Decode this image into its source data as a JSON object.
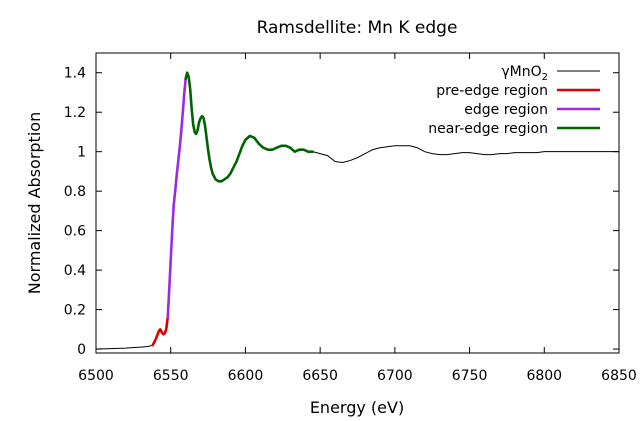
{
  "chart_data": {
    "type": "line",
    "title": "Ramsdellite: Mn K edge",
    "xlabel": "Energy (eV)",
    "ylabel": "Normalized Absorption",
    "xlim": [
      6500,
      6850
    ],
    "ylim": [
      -0.02,
      1.5
    ],
    "xticks": [
      6500,
      6550,
      6600,
      6650,
      6700,
      6750,
      6800,
      6850
    ],
    "xtick_labels": [
      "6500",
      "6550",
      "6600",
      "6650",
      "6700",
      "6750",
      "6800",
      "6850"
    ],
    "yticks": [
      0,
      0.2,
      0.4,
      0.6,
      0.8,
      1,
      1.2,
      1.4
    ],
    "ytick_labels": [
      "0",
      "0.2",
      "0.4",
      "0.6",
      "0.8",
      "1",
      "1.2",
      "1.4"
    ],
    "grid": false,
    "legend_position": "top-right",
    "series": [
      {
        "name": "γMnO2",
        "label_main": "γMnO",
        "label_sub": "2",
        "color": "#000000",
        "x": [
          6500,
          6510,
          6520,
          6530,
          6535,
          6538,
          6540,
          6542,
          6543,
          6544,
          6545,
          6546,
          6547,
          6548,
          6549,
          6550,
          6551,
          6552,
          6553,
          6554,
          6555,
          6556,
          6557,
          6558,
          6559,
          6560,
          6561,
          6562,
          6563,
          6564,
          6565,
          6566,
          6567,
          6568,
          6569,
          6570,
          6571,
          6572,
          6573,
          6574,
          6575,
          6576,
          6577,
          6578,
          6580,
          6582,
          6584,
          6586,
          6588,
          6590,
          6592,
          6594,
          6596,
          6598,
          6600,
          6603,
          6606,
          6609,
          6612,
          6615,
          6618,
          6621,
          6624,
          6627,
          6630,
          6633,
          6636,
          6639,
          6642,
          6645,
          6650,
          6655,
          6660,
          6665,
          6670,
          6675,
          6680,
          6685,
          6690,
          6695,
          6700,
          6705,
          6710,
          6715,
          6720,
          6725,
          6730,
          6735,
          6740,
          6745,
          6750,
          6755,
          6760,
          6765,
          6770,
          6775,
          6780,
          6785,
          6790,
          6795,
          6800,
          6805,
          6810,
          6815,
          6820,
          6825,
          6830,
          6835,
          6840,
          6845,
          6850
        ],
        "y": [
          0.0,
          0.002,
          0.005,
          0.01,
          0.013,
          0.02,
          0.05,
          0.09,
          0.1,
          0.085,
          0.075,
          0.08,
          0.1,
          0.16,
          0.3,
          0.45,
          0.6,
          0.73,
          0.8,
          0.88,
          0.95,
          1.02,
          1.1,
          1.19,
          1.29,
          1.37,
          1.4,
          1.38,
          1.32,
          1.22,
          1.14,
          1.1,
          1.09,
          1.11,
          1.15,
          1.17,
          1.18,
          1.17,
          1.13,
          1.07,
          1.01,
          0.96,
          0.92,
          0.89,
          0.86,
          0.85,
          0.85,
          0.86,
          0.87,
          0.89,
          0.92,
          0.95,
          0.99,
          1.03,
          1.06,
          1.08,
          1.07,
          1.04,
          1.02,
          1.01,
          1.01,
          1.02,
          1.03,
          1.03,
          1.02,
          1.0,
          1.01,
          1.01,
          1.0,
          1.0,
          0.99,
          0.98,
          0.95,
          0.945,
          0.955,
          0.97,
          0.99,
          1.01,
          1.02,
          1.025,
          1.03,
          1.03,
          1.03,
          1.02,
          1.0,
          0.99,
          0.985,
          0.985,
          0.99,
          0.995,
          0.995,
          0.99,
          0.985,
          0.985,
          0.99,
          0.99,
          0.995,
          0.995,
          0.995,
          0.995,
          1.0,
          1.0,
          1.0,
          1.0,
          1.0,
          1.0,
          1.0,
          1.0,
          1.0,
          1.0,
          1.0
        ]
      },
      {
        "name": "pre-edge region",
        "label_main": "pre-edge region",
        "label_sub": "",
        "color": "#e00000",
        "x_range": [
          6538,
          6548
        ]
      },
      {
        "name": "edge region",
        "label_main": "edge region",
        "label_sub": "",
        "color": "#9a2be2",
        "x_range": [
          6548,
          6560
        ]
      },
      {
        "name": "near-edge region",
        "label_main": "near-edge region",
        "label_sub": "",
        "color": "#006400",
        "x_range": [
          6560,
          6645
        ]
      }
    ]
  }
}
